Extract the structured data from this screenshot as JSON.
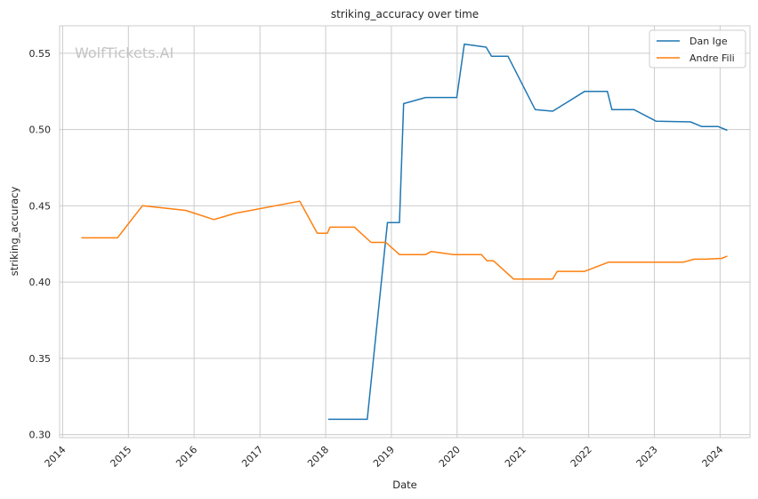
{
  "watermark": "WolfTickets.AI",
  "chart_data": {
    "type": "line",
    "title": "striking_accuracy over time",
    "xlabel": "Date",
    "ylabel": "striking_accuracy",
    "xlim": [
      "2013-12-15",
      "2024-06-15"
    ],
    "ylim": [
      0.298,
      0.568
    ],
    "x_ticks": [
      "2014",
      "2015",
      "2016",
      "2017",
      "2018",
      "2019",
      "2020",
      "2021",
      "2022",
      "2023",
      "2024"
    ],
    "y_ticks": [
      0.3,
      0.35,
      0.4,
      0.45,
      0.5,
      0.55
    ],
    "y_tick_labels": [
      "0.30",
      "0.35",
      "0.40",
      "0.45",
      "0.50",
      "0.55"
    ],
    "grid": true,
    "legend_position": "top-right",
    "series": [
      {
        "name": "Dan Ige",
        "color": "#1f77b4",
        "points": [
          [
            "2018-01-15",
            0.31
          ],
          [
            "2018-08-20",
            0.31
          ],
          [
            "2018-12-10",
            0.439
          ],
          [
            "2019-02-15",
            0.439
          ],
          [
            "2019-03-10",
            0.517
          ],
          [
            "2019-07-10",
            0.521
          ],
          [
            "2019-12-30",
            0.521
          ],
          [
            "2020-02-10",
            0.556
          ],
          [
            "2020-06-10",
            0.554
          ],
          [
            "2020-07-10",
            0.548
          ],
          [
            "2020-10-10",
            0.548
          ],
          [
            "2021-03-10",
            0.513
          ],
          [
            "2021-06-15",
            0.512
          ],
          [
            "2021-12-10",
            0.525
          ],
          [
            "2022-04-15",
            0.525
          ],
          [
            "2022-05-10",
            0.513
          ],
          [
            "2022-09-10",
            0.513
          ],
          [
            "2023-01-10",
            0.5055
          ],
          [
            "2023-07-20",
            0.505
          ],
          [
            "2023-09-20",
            0.502
          ],
          [
            "2023-12-20",
            0.502
          ],
          [
            "2024-02-10",
            0.4995
          ]
        ]
      },
      {
        "name": "Andre Fili",
        "color": "#ff7f0e",
        "points": [
          [
            "2014-04-15",
            0.429
          ],
          [
            "2014-11-01",
            0.429
          ],
          [
            "2015-03-20",
            0.45
          ],
          [
            "2015-11-15",
            0.447
          ],
          [
            "2016-04-20",
            0.441
          ],
          [
            "2016-08-15",
            0.445
          ],
          [
            "2017-08-10",
            0.453
          ],
          [
            "2017-11-15",
            0.432
          ],
          [
            "2018-01-10",
            0.432
          ],
          [
            "2018-01-25",
            0.436
          ],
          [
            "2018-06-10",
            0.436
          ],
          [
            "2018-09-10",
            0.426
          ],
          [
            "2018-12-01",
            0.426
          ],
          [
            "2019-02-15",
            0.418
          ],
          [
            "2019-07-10",
            0.418
          ],
          [
            "2019-08-10",
            0.42
          ],
          [
            "2019-12-10",
            0.418
          ],
          [
            "2020-05-15",
            0.418
          ],
          [
            "2020-06-15",
            0.414
          ],
          [
            "2020-07-20",
            0.414
          ],
          [
            "2020-11-10",
            0.402
          ],
          [
            "2021-06-15",
            0.402
          ],
          [
            "2021-07-10",
            0.407
          ],
          [
            "2021-12-10",
            0.407
          ],
          [
            "2022-04-20",
            0.413
          ],
          [
            "2022-06-10",
            0.413
          ],
          [
            "2023-06-10",
            0.413
          ],
          [
            "2023-08-10",
            0.415
          ],
          [
            "2023-10-10",
            0.415
          ],
          [
            "2024-01-10",
            0.4155
          ],
          [
            "2024-02-10",
            0.417
          ]
        ]
      }
    ]
  }
}
